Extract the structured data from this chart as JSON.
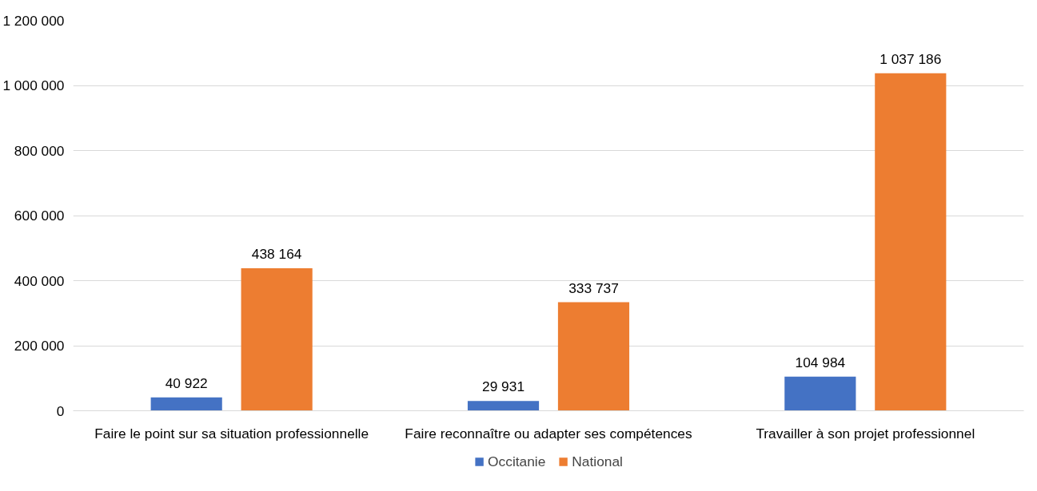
{
  "chart_data": {
    "type": "bar",
    "categories": [
      "Faire le point sur sa situation professionnelle",
      "Faire reconnaître ou adapter ses compétences",
      "Travailler à son projet professionnel"
    ],
    "series": [
      {
        "name": "Occitanie",
        "color": "#4472c4",
        "values": [
          40922,
          29931,
          104984
        ],
        "value_labels": [
          "40 922",
          "29 931",
          "104 984"
        ]
      },
      {
        "name": "National",
        "color": "#ed7d31",
        "values": [
          438164,
          333737,
          1037186
        ],
        "value_labels": [
          "438 164",
          "333 737",
          "1 037 186"
        ]
      }
    ],
    "ylim": [
      0,
      1200000
    ],
    "yticks": [
      {
        "value": 0,
        "label": "0"
      },
      {
        "value": 200000,
        "label": "200 000"
      },
      {
        "value": 400000,
        "label": "400 000"
      },
      {
        "value": 600000,
        "label": "600 000"
      },
      {
        "value": 800000,
        "label": "800 000"
      },
      {
        "value": 1000000,
        "label": "1 000 000"
      },
      {
        "value": 1200000,
        "label": "1 200 000"
      }
    ],
    "grid": "y",
    "legend": "bottom"
  }
}
